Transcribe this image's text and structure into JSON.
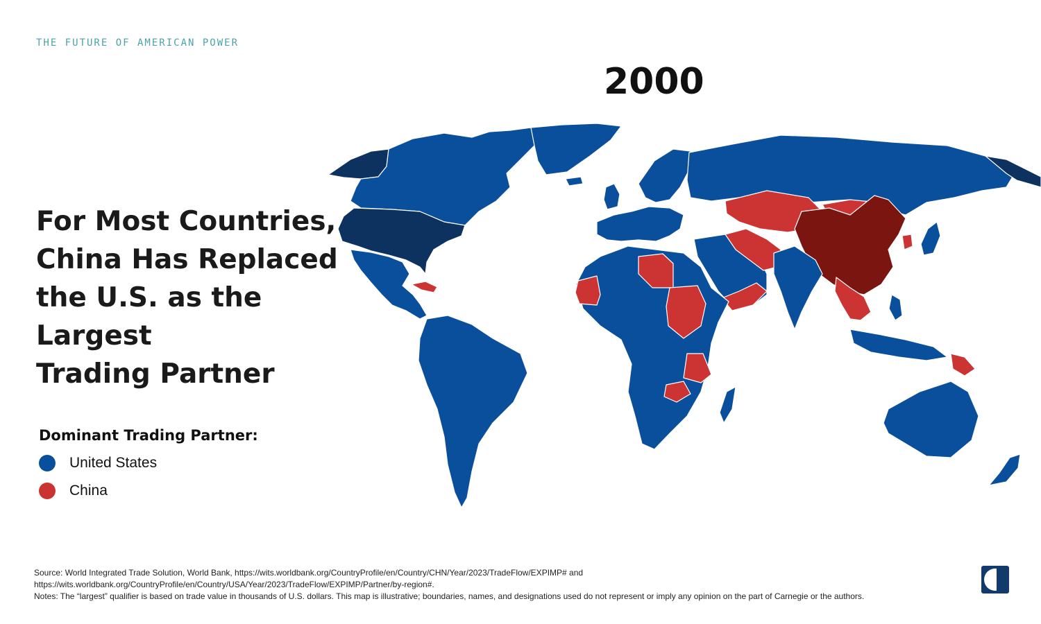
{
  "eyebrow": "THE FUTURE OF AMERICAN POWER",
  "year": "2000",
  "headline": {
    "lines": [
      "For Most Countries,",
      "China Has Replaced",
      "the U.S. as the Largest",
      "Trading Partner"
    ]
  },
  "legend": {
    "title": "Dominant Trading Partner:",
    "items": [
      {
        "label": "United States",
        "color": "#0a4f9c"
      },
      {
        "label": "China",
        "color": "#cc3333"
      }
    ]
  },
  "colors": {
    "us_partner": "#0a4f9c",
    "us_country": "#0d3260",
    "china_partner": "#cc3333",
    "china_country": "#7a1510",
    "border": "#ffffff"
  },
  "footer": {
    "source_line1": "Source: World Integrated Trade Solution, World Bank, https://wits.worldbank.org/CountryProfile/en/Country/CHN/Year/2023/TradeFlow/EXPIMP# and",
    "source_line2": "https://wits.worldbank.org/CountryProfile/en/Country/USA/Year/2023/TradeFlow/EXPIMP/Partner/by-region#.",
    "notes": "Notes: The “largest” qualifier is based on trade value in thousands of U.S. dollars. This map is illustrative; boundaries, names, and designations used do not represent or imply any opinion on the part of Carnegie or the authors."
  },
  "logo_icon": "carnegie-logo-icon"
}
